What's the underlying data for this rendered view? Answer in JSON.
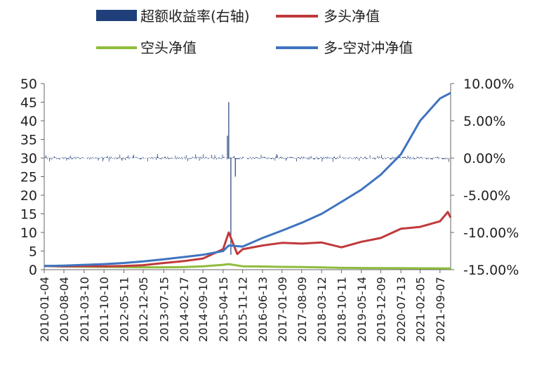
{
  "chart_data": {
    "type": "line",
    "title": "",
    "legend": {
      "placement": "top",
      "entries": [
        "超额收益率(右轴)",
        "多头净值",
        "空头净值",
        "多-空对冲净值"
      ]
    },
    "x_tick_labels": [
      "2010-01-04",
      "2010-08-04",
      "2011-03-10",
      "2011-10-10",
      "2012-05-11",
      "2012-12-05",
      "2013-07-15",
      "2014-02-17",
      "2014-09-10",
      "2015-04-15",
      "2015-11-12",
      "2016-06-13",
      "2017-01-09",
      "2017-08-09",
      "2018-03-12",
      "2018-10-11",
      "2019-05-14",
      "2019-12-09",
      "2020-07-13",
      "2021-02-05",
      "2021-09-07"
    ],
    "left_axis": {
      "ylim": [
        0,
        50
      ],
      "ticks": [
        0,
        5,
        10,
        15,
        20,
        25,
        30,
        35,
        40,
        45,
        50
      ]
    },
    "right_axis": {
      "ylim": [
        -15,
        10
      ],
      "ticks": [
        "-15.00%",
        "-10.00%",
        "-5.00%",
        "0.00%",
        "5.00%",
        "10.00%"
      ]
    },
    "colors": {
      "excess": "#1f3f7a",
      "long": "#c0393b",
      "short": "#8fbc3c",
      "hedge": "#3f73c0"
    },
    "series": [
      {
        "name": "多-空对冲净值",
        "axis": "left",
        "x": [
          "2010-01-04",
          "2010-08-04",
          "2011-03-10",
          "2011-10-10",
          "2012-05-11",
          "2012-12-05",
          "2013-07-15",
          "2014-02-17",
          "2014-09-10",
          "2015-04-15",
          "2015-06-15",
          "2015-11-12",
          "2016-06-13",
          "2017-01-09",
          "2017-08-09",
          "2018-03-12",
          "2018-10-11",
          "2019-05-14",
          "2019-12-09",
          "2020-07-13",
          "2021-02-05",
          "2021-09-07",
          "2021-12-31"
        ],
        "values": [
          1.0,
          1.1,
          1.3,
          1.5,
          1.8,
          2.2,
          2.8,
          3.4,
          4.0,
          5.0,
          6.5,
          6.2,
          8.5,
          10.5,
          12.6,
          15.0,
          18.2,
          21.5,
          25.5,
          31.0,
          40.0,
          46.0,
          47.5
        ]
      },
      {
        "name": "多头净值",
        "axis": "left",
        "x": [
          "2010-01-04",
          "2010-08-04",
          "2011-03-10",
          "2011-10-10",
          "2012-05-11",
          "2012-12-05",
          "2013-07-15",
          "2014-02-17",
          "2014-09-10",
          "2015-04-15",
          "2015-06-15",
          "2015-09-15",
          "2015-11-12",
          "2016-06-13",
          "2017-01-09",
          "2017-08-09",
          "2018-03-12",
          "2018-10-11",
          "2019-05-14",
          "2019-12-09",
          "2020-07-13",
          "2021-02-05",
          "2021-09-07",
          "2021-11-30",
          "2021-12-31"
        ],
        "values": [
          1.0,
          0.9,
          0.95,
          0.9,
          1.0,
          1.2,
          1.8,
          2.3,
          3.0,
          5.5,
          10.0,
          4.2,
          5.5,
          6.5,
          7.2,
          7.0,
          7.3,
          6.0,
          7.5,
          8.5,
          11.0,
          11.5,
          13.0,
          15.5,
          14.0
        ]
      },
      {
        "name": "空头净值",
        "axis": "left",
        "x": [
          "2010-01-04",
          "2010-08-04",
          "2011-03-10",
          "2011-10-10",
          "2012-05-11",
          "2012-12-05",
          "2013-07-15",
          "2014-02-17",
          "2014-09-10",
          "2015-04-15",
          "2015-06-15",
          "2015-11-12",
          "2016-06-13",
          "2017-01-09",
          "2017-08-09",
          "2018-03-12",
          "2018-10-11",
          "2019-05-14",
          "2019-12-09",
          "2020-07-13",
          "2021-02-05",
          "2021-09-07",
          "2021-12-31"
        ],
        "values": [
          1.0,
          0.85,
          0.8,
          0.75,
          0.7,
          0.65,
          0.65,
          0.7,
          0.9,
          1.3,
          1.5,
          0.9,
          0.85,
          0.75,
          0.7,
          0.6,
          0.5,
          0.45,
          0.42,
          0.4,
          0.38,
          0.35,
          0.33
        ]
      },
      {
        "name": "超额收益率(右轴)",
        "axis": "right",
        "type": "bar",
        "baseline": 0.0,
        "typical_range": [
          -0.5,
          0.6
        ],
        "spikes": [
          {
            "x": "2015-06-15",
            "value": 7.5
          },
          {
            "x": "2015-07-08",
            "value": -13.0
          },
          {
            "x": "2015-06-01",
            "value": 3.0
          },
          {
            "x": "2015-08-25",
            "value": -2.5
          }
        ]
      }
    ]
  }
}
